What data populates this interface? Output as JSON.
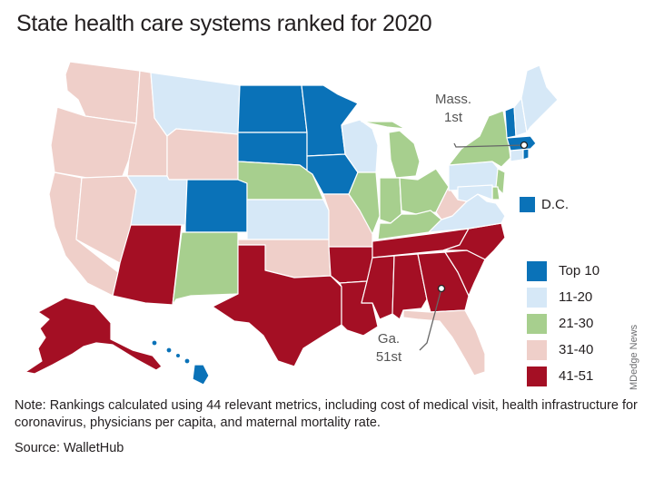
{
  "title": "State health care systems ranked for 2020",
  "colors": {
    "top10": "#0a72b8",
    "r11_20": "#d6e8f7",
    "r21_30": "#a7cf8e",
    "r31_40": "#efcfc9",
    "r41_51": "#a40f24",
    "border": "#ffffff",
    "callout": "#666666"
  },
  "legend": [
    {
      "label": "Top 10",
      "group": "top10"
    },
    {
      "label": "11-20",
      "group": "r11_20"
    },
    {
      "label": "21-30",
      "group": "r21_30"
    },
    {
      "label": "31-40",
      "group": "r31_40"
    },
    {
      "label": "41-51",
      "group": "r41_51"
    }
  ],
  "dc": {
    "label": "D.C.",
    "group": "top10"
  },
  "annotations": {
    "mass": {
      "line1": "Mass.",
      "line2": "1st"
    },
    "ga": {
      "line1": "Ga.",
      "line2": "51st"
    }
  },
  "state_groups": {
    "WA": "r31_40",
    "OR": "r31_40",
    "CA": "r31_40",
    "ID": "r31_40",
    "NV": "r31_40",
    "MT": "r11_20",
    "WY": "r31_40",
    "UT": "r11_20",
    "AZ": "r41_51",
    "CO": "top10",
    "NM": "r21_30",
    "ND": "top10",
    "SD": "top10",
    "NE": "r21_30",
    "KS": "r11_20",
    "OK": "r31_40",
    "TX": "r41_51",
    "MN": "top10",
    "IA": "top10",
    "MO": "r31_40",
    "AR": "r41_51",
    "LA": "r41_51",
    "WI": "r11_20",
    "IL": "r21_30",
    "MI": "r21_30",
    "IN": "r21_30",
    "OH": "r21_30",
    "KY": "r21_30",
    "TN": "r41_51",
    "MS": "r41_51",
    "AL": "r41_51",
    "GA": "r41_51",
    "FL": "r31_40",
    "SC": "r41_51",
    "NC": "r41_51",
    "VA": "r11_20",
    "WV": "r31_40",
    "PA": "r11_20",
    "NY": "r21_30",
    "VT": "top10",
    "NH": "r11_20",
    "ME": "r11_20",
    "MA": "top10",
    "RI": "top10",
    "CT": "r11_20",
    "NJ": "r21_30",
    "DE": "r21_30",
    "MD": "r11_20",
    "AK": "r41_51",
    "HI": "top10"
  },
  "credit": "MDedge News",
  "note": {
    "lead": "Note:",
    "text": " Rankings calculated using 44 relevant metrics, including cost of medical visit, health infrastructure for coronavirus, physicians per capita, and maternal mortality rate."
  },
  "source": {
    "lead": "Source:",
    "text": " WalletHub"
  }
}
